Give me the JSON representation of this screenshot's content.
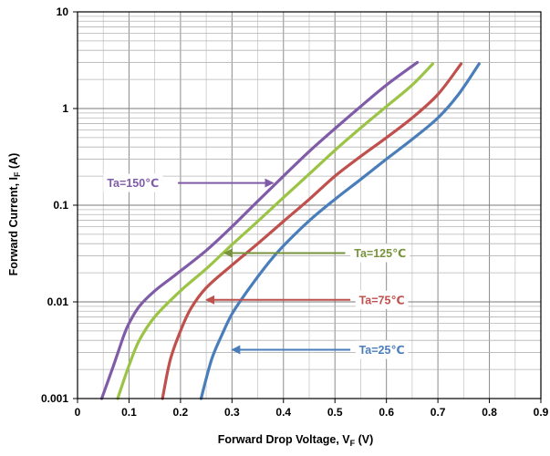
{
  "chart_data": {
    "type": "line",
    "title": "",
    "xlabel": "Forward Drop Voltage, V",
    "xlabel_sub": "F",
    "xlabel_unit": " (V)",
    "ylabel": "Forward Current, I",
    "ylabel_sub": "F",
    "ylabel_unit": " (A)",
    "xlim": [
      0,
      0.9
    ],
    "ylim": [
      0.001,
      10
    ],
    "y_scale": "log",
    "grid": true,
    "x_ticks": [
      {
        "v": 0,
        "label": "0"
      },
      {
        "v": 0.1,
        "label": "0.1"
      },
      {
        "v": 0.2,
        "label": "0.2"
      },
      {
        "v": 0.3,
        "label": "0.3"
      },
      {
        "v": 0.4,
        "label": "0.4"
      },
      {
        "v": 0.5,
        "label": "0.5"
      },
      {
        "v": 0.6,
        "label": "0.6"
      },
      {
        "v": 0.7,
        "label": "0.7"
      },
      {
        "v": 0.8,
        "label": "0.8"
      },
      {
        "v": 0.9,
        "label": "0.9"
      }
    ],
    "y_ticks": [
      {
        "v": 0.001,
        "label": "0.001"
      },
      {
        "v": 0.01,
        "label": "0.01"
      },
      {
        "v": 0.1,
        "label": "0.1"
      },
      {
        "v": 1,
        "label": "1"
      },
      {
        "v": 10,
        "label": "10"
      }
    ],
    "series": [
      {
        "name": "Ta=150℃",
        "color": "#7f5ba8",
        "x": [
          0.047,
          0.07,
          0.09,
          0.1,
          0.12,
          0.15,
          0.19,
          0.25,
          0.3,
          0.35,
          0.4,
          0.45,
          0.5,
          0.55,
          0.6,
          0.66
        ],
        "y": [
          0.001,
          0.0022,
          0.0045,
          0.006,
          0.009,
          0.013,
          0.019,
          0.034,
          0.06,
          0.11,
          0.2,
          0.36,
          0.62,
          1.05,
          1.75,
          3
        ]
      },
      {
        "name": "Ta=125℃",
        "color": "#9bc446",
        "x": [
          0.078,
          0.1,
          0.12,
          0.15,
          0.2,
          0.25,
          0.3,
          0.35,
          0.4,
          0.45,
          0.5,
          0.55,
          0.6,
          0.65,
          0.69
        ],
        "y": [
          0.001,
          0.0022,
          0.004,
          0.007,
          0.013,
          0.022,
          0.039,
          0.068,
          0.12,
          0.21,
          0.37,
          0.63,
          1.05,
          1.75,
          2.9
        ]
      },
      {
        "name": "Ta=75℃",
        "color": "#c0504d",
        "x": [
          0.165,
          0.18,
          0.2,
          0.22,
          0.25,
          0.3,
          0.35,
          0.4,
          0.45,
          0.5,
          0.55,
          0.6,
          0.65,
          0.7,
          0.745
        ],
        "y": [
          0.001,
          0.0025,
          0.005,
          0.0085,
          0.014,
          0.024,
          0.04,
          0.068,
          0.115,
          0.2,
          0.32,
          0.5,
          0.8,
          1.4,
          2.9
        ]
      },
      {
        "name": "Ta=25℃",
        "color": "#4a7ebb",
        "x": [
          0.24,
          0.26,
          0.28,
          0.3,
          0.33,
          0.37,
          0.4,
          0.45,
          0.5,
          0.55,
          0.6,
          0.65,
          0.7,
          0.74,
          0.78
        ],
        "y": [
          0.001,
          0.0025,
          0.0045,
          0.0075,
          0.013,
          0.025,
          0.038,
          0.069,
          0.115,
          0.185,
          0.3,
          0.48,
          0.8,
          1.4,
          2.9
        ]
      }
    ],
    "annotations": [
      {
        "label": "Ta=150℃",
        "color": "#7f5ba8",
        "series": 0,
        "label_x": 0.05,
        "label_y": 0.17,
        "arrow_from_x": 0.195,
        "arrow_to_x": 0.38,
        "y": 0.17,
        "side": "left"
      },
      {
        "label": "Ta=125℃",
        "color": "#77933c",
        "series": 1,
        "label_x": 0.53,
        "label_y": 0.032,
        "arrow_from_x": 0.52,
        "arrow_to_x": 0.285,
        "y": 0.032,
        "side": "right"
      },
      {
        "label": "Ta=75℃",
        "color": "#c0504d",
        "series": 2,
        "label_x": 0.54,
        "label_y": 0.0105,
        "arrow_from_x": 0.53,
        "arrow_to_x": 0.25,
        "y": 0.0105,
        "side": "right"
      },
      {
        "label": "Ta=25℃",
        "color": "#4a7ebb",
        "series": 3,
        "label_x": 0.54,
        "label_y": 0.0032,
        "arrow_from_x": 0.53,
        "arrow_to_x": 0.3,
        "y": 0.0032,
        "side": "right"
      }
    ]
  }
}
